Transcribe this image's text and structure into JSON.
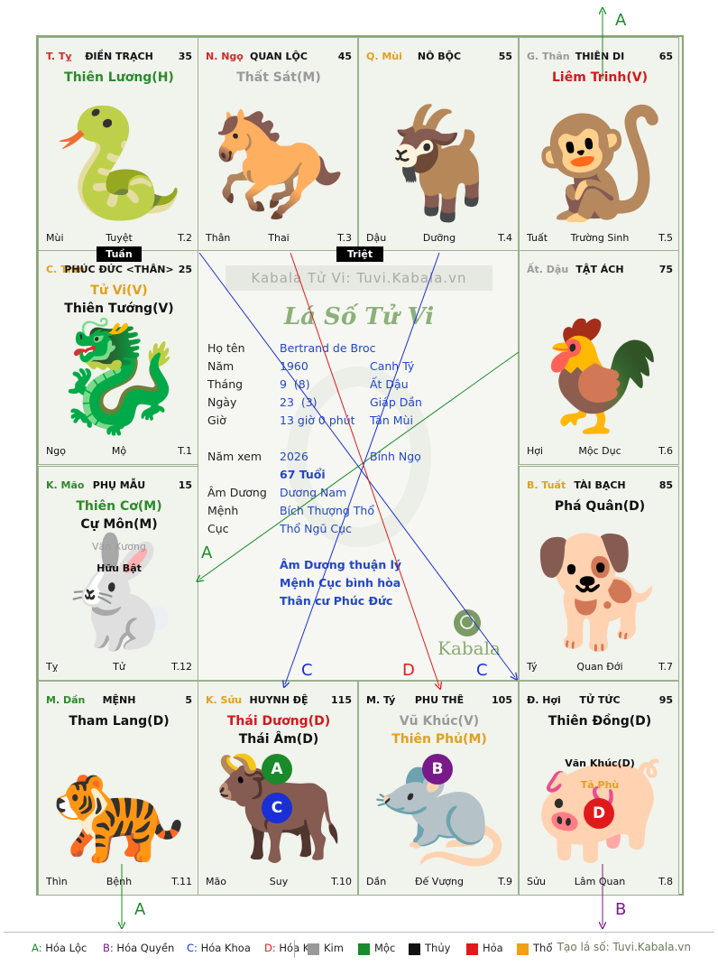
{
  "palaces": [
    {
      "id": "ty",
      "stem": "T. Tỵ",
      "stem_color": "#d12a2a",
      "house": "ĐIỀN TRẠCH",
      "num": "35",
      "bl": "Mùi",
      "bm": "Tuyệt",
      "br": "T.2",
      "glyph": "🐍",
      "stars": [
        {
          "text": "Thiên Lương(H)",
          "color": "#2c8a2c"
        }
      ],
      "minors": []
    },
    {
      "id": "ngo",
      "stem": "N. Ngọ",
      "stem_color": "#d12a2a",
      "house": "QUAN LỘC",
      "num": "45",
      "bl": "Thân",
      "bm": "Thai",
      "br": "T.3",
      "glyph": "🐎",
      "stars": [
        {
          "text": "Thất Sát(M)",
          "color": "#9a9a9a"
        }
      ],
      "minors": []
    },
    {
      "id": "mui",
      "stem": "Q. Mùi",
      "stem_color": "#e0a020",
      "house": "NÔ BỘC",
      "num": "55",
      "bl": "Dậu",
      "bm": "Dưỡng",
      "br": "T.4",
      "glyph": "🐐",
      "stars": [],
      "minors": []
    },
    {
      "id": "than",
      "stem": "G. Thân",
      "stem_color": "#9a9a9a",
      "house": "THIÊN DI",
      "num": "65",
      "bl": "Tuất",
      "bm": "Trường Sinh",
      "br": "T.5",
      "glyph": "🐒",
      "stars": [
        {
          "text": "Liêm Trinh(V)",
          "color": "#d11a1a"
        }
      ],
      "minors": []
    },
    {
      "id": "thin",
      "stem": "C. Thìn",
      "stem_color": "#e0a020",
      "house": "PHÚC ĐỨC <THÂN>",
      "num": "25",
      "bl": "Ngọ",
      "bm": "Mộ",
      "br": "T.1",
      "glyph": "🐉",
      "stars": [
        {
          "text": "Tử Vi(V)",
          "color": "#e0a020"
        },
        {
          "text": "Thiên Tướng(V)",
          "color": "#111111"
        }
      ],
      "minors": []
    },
    {
      "id": "dau",
      "stem": "Ất. Dậu",
      "stem_color": "#9a9a9a",
      "house": "TẬT ÁCH",
      "num": "75",
      "bl": "Hợi",
      "bm": "Mộc Dục",
      "br": "T.6",
      "glyph": "🐓",
      "stars": [],
      "minors": []
    },
    {
      "id": "mao",
      "stem": "K. Mão",
      "stem_color": "#2c8a2c",
      "house": "PHỤ MẪU",
      "num": "15",
      "bl": "Tỵ",
      "bm": "Tử",
      "br": "T.12",
      "glyph": "🐇",
      "stars": [
        {
          "text": "Thiên Cơ(M)",
          "color": "#2c8a2c"
        },
        {
          "text": "Cự Môn(M)",
          "color": "#111111"
        }
      ],
      "minors": [
        {
          "text": "Văn Xương",
          "color": "#9a9a9a"
        },
        {
          "text": "Hữu Bật",
          "color": "#111111"
        }
      ]
    },
    {
      "id": "tuat",
      "stem": "B. Tuất",
      "stem_color": "#e0a020",
      "house": "TÀI BẠCH",
      "num": "85",
      "bl": "Tý",
      "bm": "Quan Đới",
      "br": "T.7",
      "glyph": "🐕",
      "stars": [
        {
          "text": "Phá Quân(D)",
          "color": "#111111"
        }
      ],
      "minors": []
    },
    {
      "id": "dan",
      "stem": "M. Dần",
      "stem_color": "#2c8a2c",
      "house": "MỆNH",
      "num": "5",
      "bl": "Thìn",
      "bm": "Bệnh",
      "br": "T.11",
      "glyph": "🐅",
      "stars": [
        {
          "text": "Tham Lang(D)",
          "color": "#111111"
        }
      ],
      "minors": []
    },
    {
      "id": "suu",
      "stem": "K. Sửu",
      "stem_color": "#e0a020",
      "house": "HUYNH ĐỆ",
      "num": "115",
      "bl": "Mão",
      "bm": "Suy",
      "br": "T.10",
      "glyph": "🐂",
      "stars": [
        {
          "text": "Thái Dương(D)",
          "color": "#d11a1a"
        },
        {
          "text": "Thái Âm(D)",
          "color": "#111111"
        }
      ],
      "minors": []
    },
    {
      "id": "ti",
      "stem": "M. Tý",
      "stem_color": "#111111",
      "house": "PHU THÊ",
      "num": "105",
      "bl": "Dần",
      "bm": "Đế Vượng",
      "br": "T.9",
      "glyph": "🐀",
      "stars": [
        {
          "text": "Vũ Khúc(V)",
          "color": "#9a9a9a"
        },
        {
          "text": "Thiên Phủ(M)",
          "color": "#e0a020"
        }
      ],
      "minors": []
    },
    {
      "id": "hoi",
      "stem": "Đ. Hợi",
      "stem_color": "#111111",
      "house": "TỬ TỨC",
      "num": "95",
      "bl": "Sửu",
      "bm": "Lâm Quan",
      "br": "T.8",
      "glyph": "🐖",
      "stars": [
        {
          "text": "Thiên Đồng(D)",
          "color": "#111111"
        }
      ],
      "minors": [
        {
          "text": "Văn Khúc(D)",
          "color": "#111111"
        },
        {
          "text": "Tả Phù",
          "color": "#e0a020"
        }
      ]
    }
  ],
  "markers": {
    "tuan": "Tuần",
    "triet": "Triệt"
  },
  "center": {
    "watermark": "Kabala Tử Vi: Tuvi.Kabala.vn",
    "title": "Lá Số Tử Vi",
    "labels": {
      "hoten": "Họ tên",
      "nam": "Năm",
      "thang": "Tháng",
      "ngay": "Ngày",
      "gio": "Giờ",
      "namxem": "Năm xem",
      "amduong": "Âm Dương",
      "menh": "Mệnh",
      "cuc": "Cục"
    },
    "hoten": "Bertrand de Broc",
    "nam": "1960",
    "nam_can": "Canh Tý",
    "thang": "9  (8)",
    "thang_can": "Ất Dậu",
    "ngay": "23  (3)",
    "ngay_can": "Giáp Dần",
    "gio": "13 giờ 0 phút",
    "gio_can": "Tân Mùi",
    "namxem": "2026",
    "namxem_can": "Bính Ngọ",
    "tuoi": "67 Tuổi",
    "amduong": "Dương Nam",
    "menh": "Bích Thượng Thổ",
    "cuc": "Thổ Ngũ Cục",
    "notes": [
      "Âm Dương thuận lý",
      "Mệnh Cục bình hòa",
      "Thân cư Phúc Đức"
    ],
    "brand": "Kabala"
  },
  "circles": [
    {
      "label": "A",
      "color": "#1a8a2a",
      "cell": "suu"
    },
    {
      "label": "C",
      "color": "#1a2fd6",
      "cell": "suu"
    },
    {
      "label": "B",
      "color": "#7a1a8a",
      "cell": "ti"
    },
    {
      "label": "D",
      "color": "#e01a1a",
      "cell": "hoi"
    }
  ],
  "arrow_labels": {
    "a_top": "A",
    "a_left": "A",
    "a_bottom": "A",
    "b_bottom": "B",
    "c1": "C",
    "c2": "C",
    "d": "D"
  },
  "legend": {
    "hoa": [
      {
        "key": "A:",
        "text": "Hóa Lộc",
        "color": "#1a8a2a"
      },
      {
        "key": "B:",
        "text": "Hóa Quyền",
        "color": "#7a1a8a"
      },
      {
        "key": "C:",
        "text": "Hóa Khoa",
        "color": "#1a2fd6"
      },
      {
        "key": "D:",
        "text": "Hóa Kị",
        "color": "#e01a1a"
      }
    ],
    "elements": [
      {
        "text": "Kim",
        "color": "#999999"
      },
      {
        "text": "Mộc",
        "color": "#1a8a2a"
      },
      {
        "text": "Thủy",
        "color": "#111111"
      },
      {
        "text": "Hỏa",
        "color": "#e01a1a"
      },
      {
        "text": "Thổ",
        "color": "#f0a010"
      }
    ],
    "credit": "Tạo lá số: Tuvi.Kabala.vn"
  }
}
